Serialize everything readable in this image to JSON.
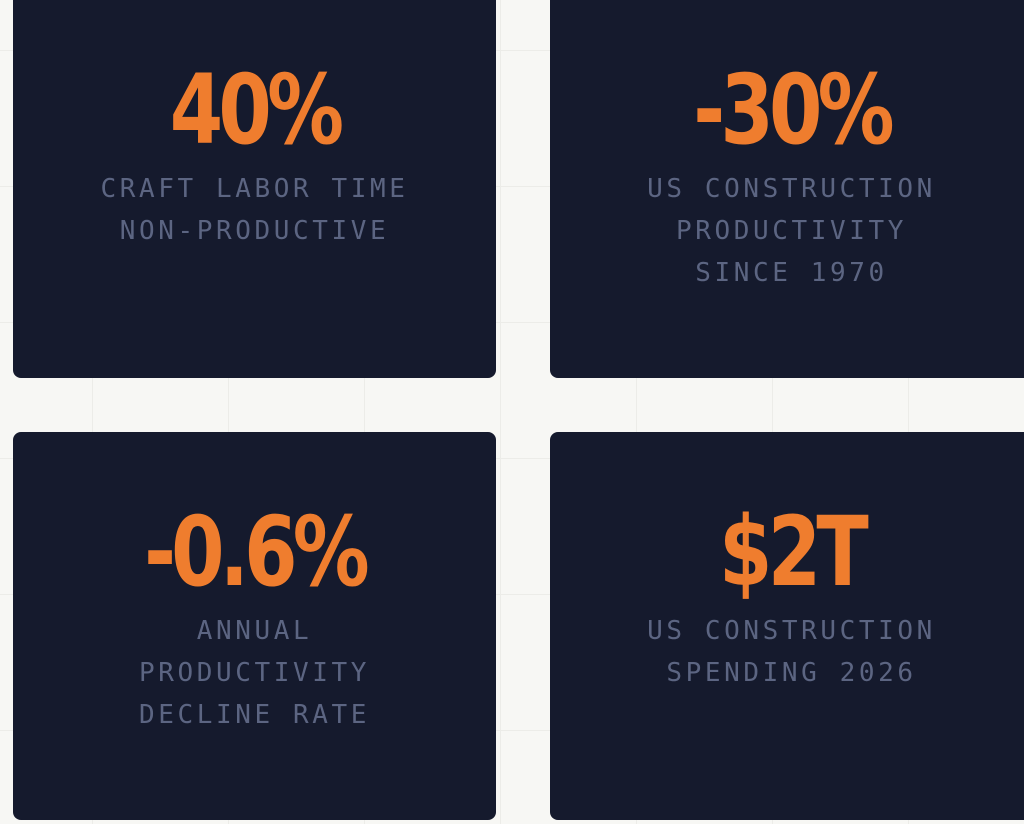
{
  "stats": [
    {
      "value": "40%",
      "label_lines": [
        "CRAFT LABOR TIME",
        "NON-PRODUCTIVE"
      ]
    },
    {
      "value": "-30%",
      "label_lines": [
        "US CONSTRUCTION",
        "PRODUCTIVITY",
        "SINCE 1970"
      ]
    },
    {
      "value": "-0.6%",
      "label_lines": [
        "ANNUAL",
        "PRODUCTIVITY",
        "DECLINE RATE"
      ]
    },
    {
      "value": "$2T",
      "label_lines": [
        "US CONSTRUCTION",
        "SPENDING 2026"
      ]
    }
  ],
  "colors": {
    "background": "#f7f7f4",
    "card": "#151a2d",
    "accent": "#ef7d2e",
    "label": "#5c6582"
  }
}
